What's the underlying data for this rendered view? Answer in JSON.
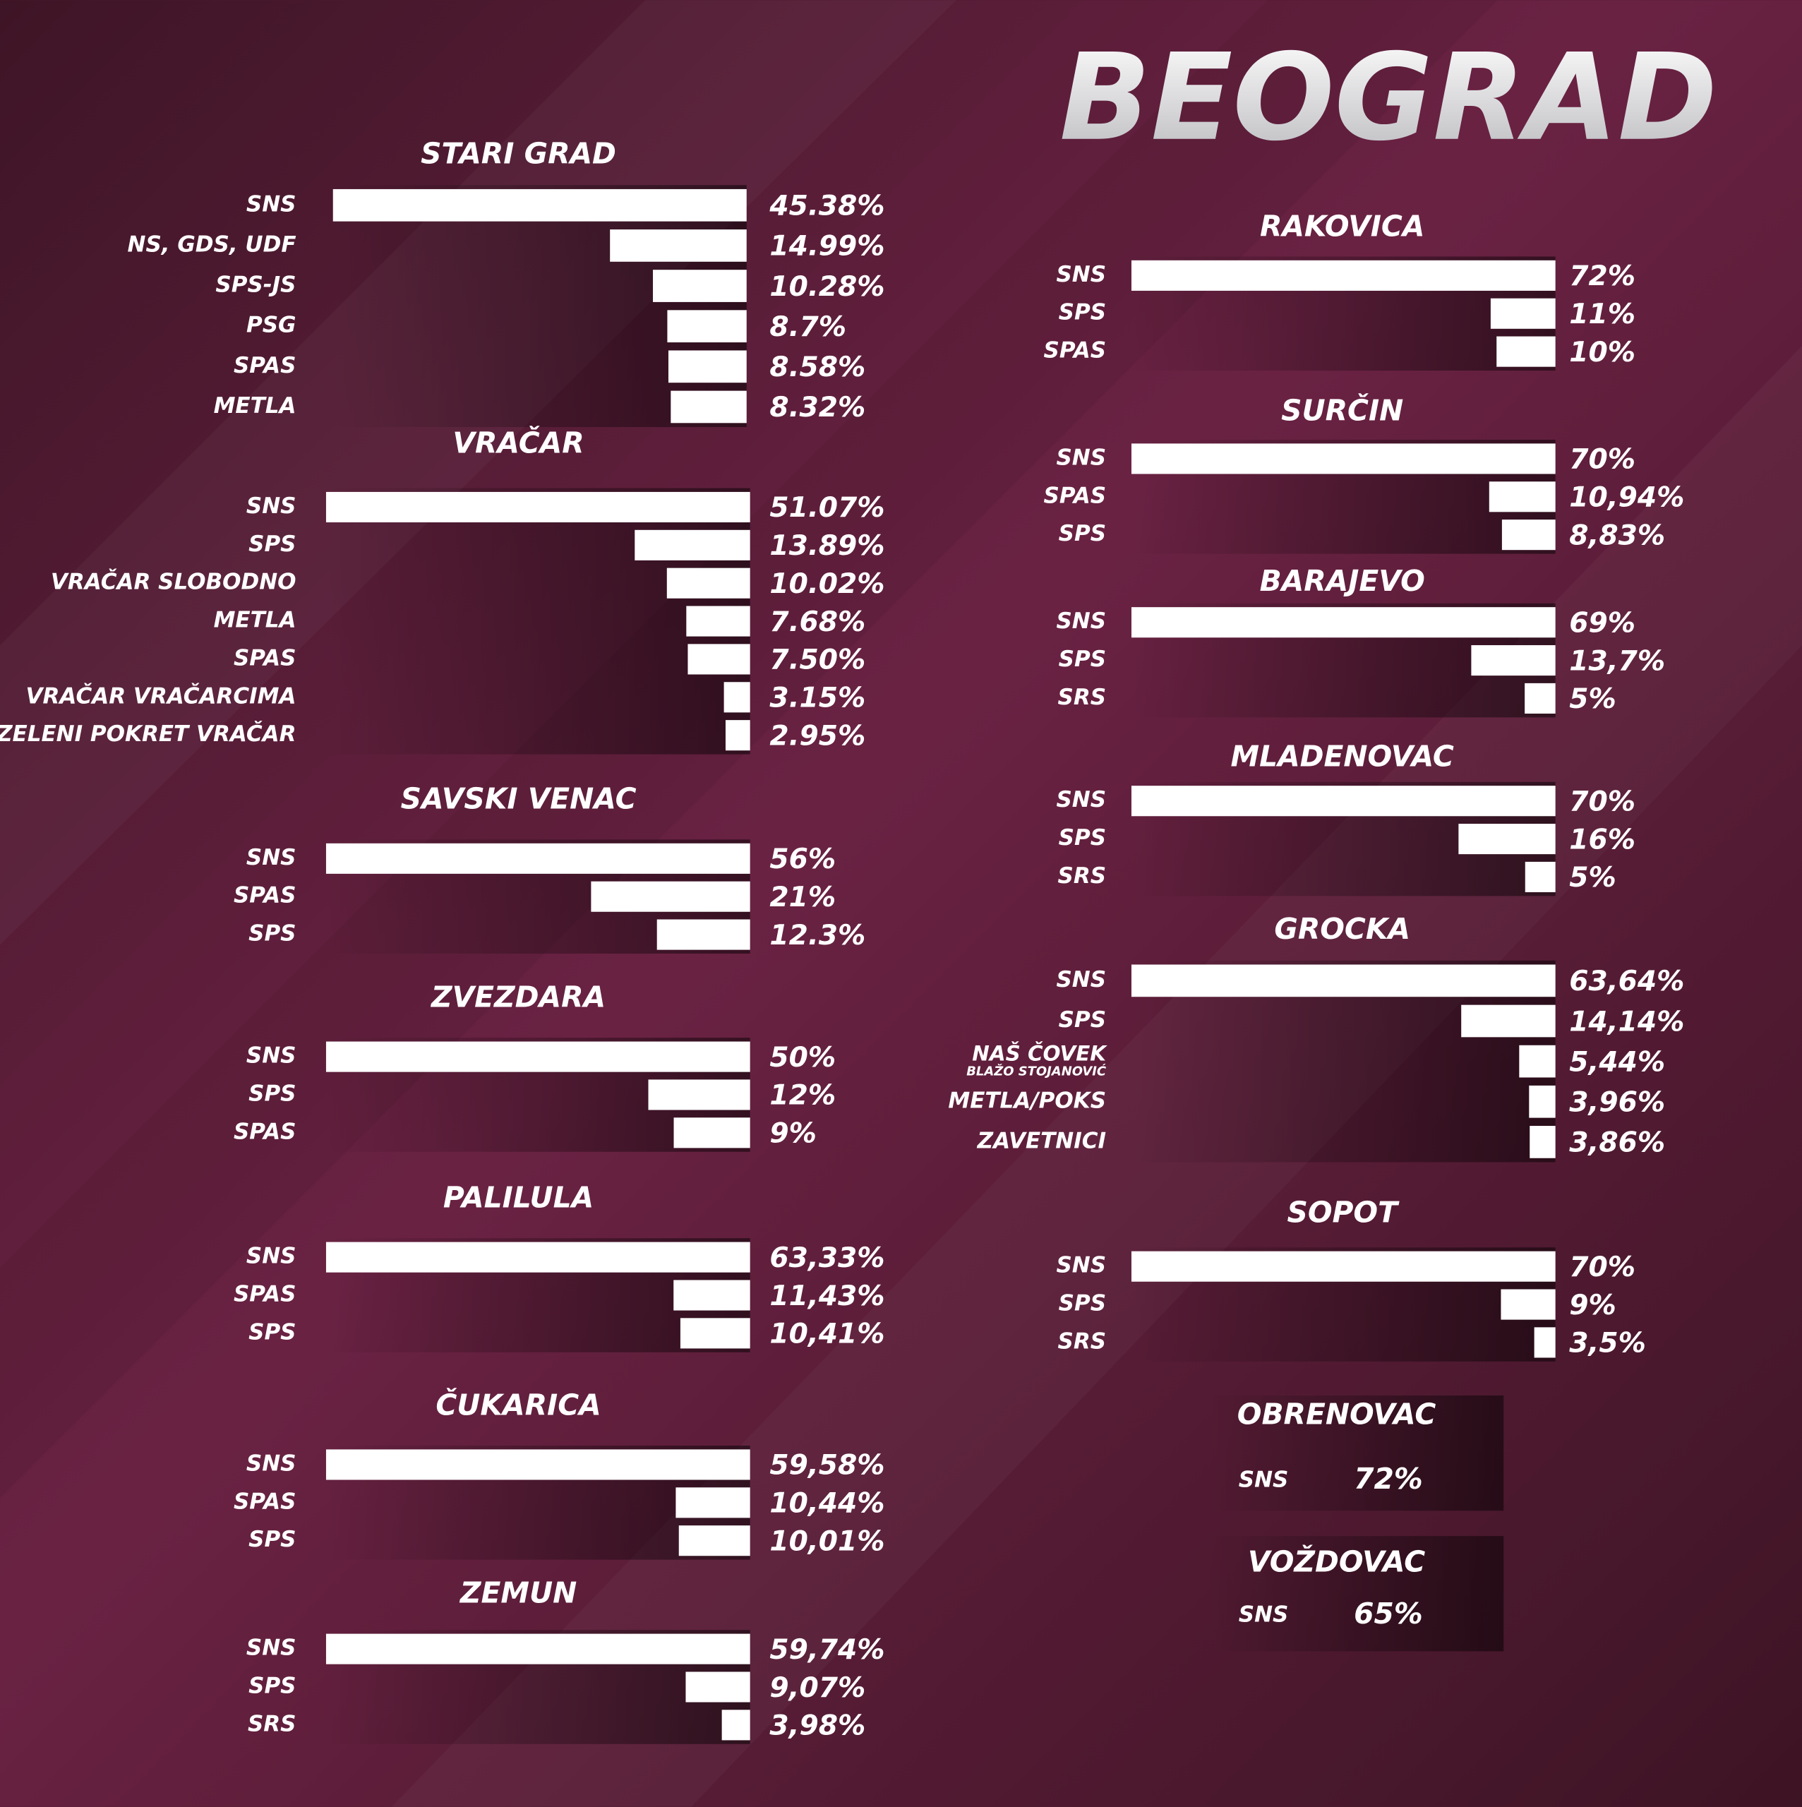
{
  "title": "BEOGRAD",
  "chart_data": [
    {
      "type": "bar",
      "title": "STARI GRAD",
      "categories": [
        "SNS",
        "NS, GDS, UDF",
        "SPS-JS",
        "PSG",
        "SPAS",
        "METLA"
      ],
      "values": [
        45.38,
        14.99,
        10.28,
        8.7,
        8.58,
        8.32
      ],
      "value_labels": [
        "45.38%",
        "14.99%",
        "10.28%",
        "8.7%",
        "8.58%",
        "8.32%"
      ],
      "color": "#ffffff"
    },
    {
      "type": "bar",
      "title": "VRAČAR",
      "categories": [
        "SNS",
        "SPS",
        "VRAČAR SLOBODNO",
        "METLA",
        "SPAS",
        "VRAČAR VRAČARCIMA",
        "ZELENI POKRET VRAČAR"
      ],
      "values": [
        51.07,
        13.89,
        10.02,
        7.68,
        7.5,
        3.15,
        2.95
      ],
      "value_labels": [
        "51.07%",
        "13.89%",
        "10.02%",
        "7.68%",
        "7.50%",
        "3.15%",
        "2.95%"
      ],
      "color": "#ffffff"
    },
    {
      "type": "bar",
      "title": "SAVSKI VENAC",
      "categories": [
        "SNS",
        "SPAS",
        "SPS"
      ],
      "values": [
        56,
        21,
        12.3
      ],
      "value_labels": [
        "56%",
        "21%",
        "12.3%"
      ],
      "color": "#ffffff"
    },
    {
      "type": "bar",
      "title": "ZVEZDARA",
      "categories": [
        "SNS",
        "SPS",
        "SPAS"
      ],
      "values": [
        50,
        12,
        9
      ],
      "value_labels": [
        "50%",
        "12%",
        "9%"
      ],
      "color": "#ffffff"
    },
    {
      "type": "bar",
      "title": "PALILULA",
      "categories": [
        "SNS",
        "SPAS",
        "SPS"
      ],
      "values": [
        63.33,
        11.43,
        10.41
      ],
      "value_labels": [
        "63,33%",
        "11,43%",
        "10,41%"
      ],
      "color": "#ffffff"
    },
    {
      "type": "bar",
      "title": "ČUKARICA",
      "categories": [
        "SNS",
        "SPAS",
        "SPS"
      ],
      "values": [
        59.58,
        10.44,
        10.01
      ],
      "value_labels": [
        "59,58%",
        "10,44%",
        "10,01%"
      ],
      "color": "#ffffff"
    },
    {
      "type": "bar",
      "title": "ZEMUN",
      "categories": [
        "SNS",
        "SPS",
        "SRS"
      ],
      "values": [
        59.74,
        9.07,
        3.98
      ],
      "value_labels": [
        "59,74%",
        "9,07%",
        "3,98%"
      ],
      "color": "#ffffff"
    },
    {
      "type": "bar",
      "title": "RAKOVICA",
      "categories": [
        "SNS",
        "SPS",
        "SPAS"
      ],
      "values": [
        72,
        11,
        10
      ],
      "value_labels": [
        "72%",
        "11%",
        "10%"
      ],
      "color": "#ffffff"
    },
    {
      "type": "bar",
      "title": "SURČIN",
      "categories": [
        "SNS",
        "SPAS",
        "SPS"
      ],
      "values": [
        70,
        10.94,
        8.83
      ],
      "value_labels": [
        "70%",
        "10,94%",
        "8,83%"
      ],
      "color": "#ffffff"
    },
    {
      "type": "bar",
      "title": "BARAJEVO",
      "categories": [
        "SNS",
        "SPS",
        "SRS"
      ],
      "values": [
        69,
        13.7,
        5
      ],
      "value_labels": [
        "69%",
        "13,7%",
        "5%"
      ],
      "color": "#ffffff"
    },
    {
      "type": "bar",
      "title": "MLADENOVAC",
      "categories": [
        "SNS",
        "SPS",
        "SRS"
      ],
      "values": [
        70,
        16,
        5
      ],
      "value_labels": [
        "70%",
        "16%",
        "5%"
      ],
      "color": "#ffffff"
    },
    {
      "type": "bar",
      "title": "GROCKA",
      "categories": [
        "SNS",
        "SPS",
        "NAŠ ČOVEK",
        "METLA/POKS",
        "ZAVETNICI"
      ],
      "sublabels": [
        null,
        null,
        "BLAŽO STOJANOVIĆ",
        null,
        null
      ],
      "values": [
        63.64,
        14.14,
        5.44,
        3.96,
        3.86
      ],
      "value_labels": [
        "63,64%",
        "14,14%",
        "5,44%",
        "3,96%",
        "3,86%"
      ],
      "color": "#ffffff"
    },
    {
      "type": "bar",
      "title": "SOPOT",
      "categories": [
        "SNS",
        "SPS",
        "SRS"
      ],
      "values": [
        70,
        9,
        3.5
      ],
      "value_labels": [
        "70%",
        "9%",
        "3,5%"
      ],
      "color": "#ffffff"
    },
    {
      "type": "summary",
      "title": "OBRENOVAC",
      "categories": [
        "SNS"
      ],
      "values": [
        72
      ],
      "value_labels": [
        "72%"
      ]
    },
    {
      "type": "summary",
      "title": "VOŽDOVAC",
      "categories": [
        "SNS"
      ],
      "values": [
        65
      ],
      "value_labels": [
        "65%"
      ]
    }
  ]
}
